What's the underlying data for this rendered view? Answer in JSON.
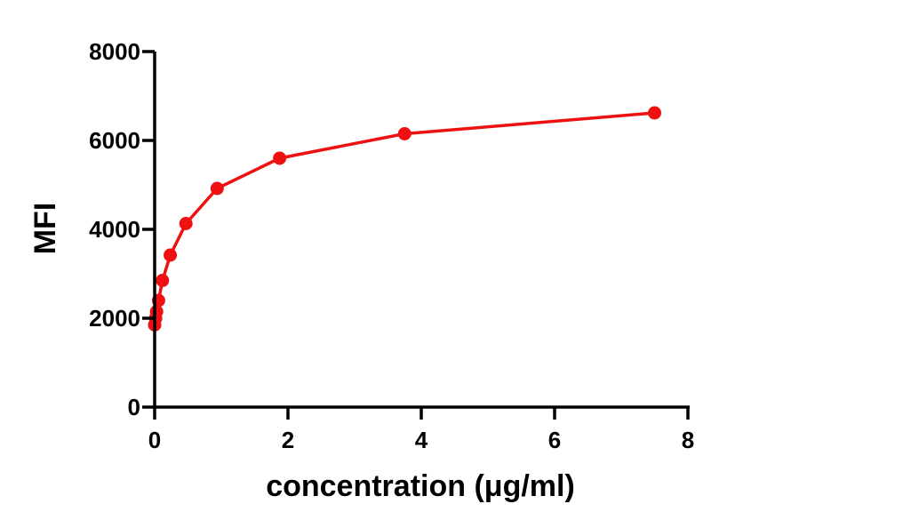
{
  "chart_data": {
    "type": "line",
    "title": "",
    "xlabel": "concentration (μg/ml)",
    "ylabel": "MFI",
    "xlim": [
      0,
      8
    ],
    "ylim": [
      0,
      8000
    ],
    "xticks": [
      0,
      2,
      4,
      6,
      8
    ],
    "yticks": [
      0,
      2000,
      4000,
      6000,
      8000
    ],
    "grid": false,
    "legend": "none",
    "series": [
      {
        "color": "#ee1111",
        "marker": "circle",
        "x": [
          0,
          0.0146,
          0.0293,
          0.0586,
          0.117,
          0.234,
          0.469,
          0.9375,
          1.875,
          3.75,
          7.5
        ],
        "y": [
          1850,
          2000,
          2150,
          2400,
          2850,
          3420,
          4130,
          4920,
          5600,
          6150,
          6620
        ]
      }
    ]
  }
}
